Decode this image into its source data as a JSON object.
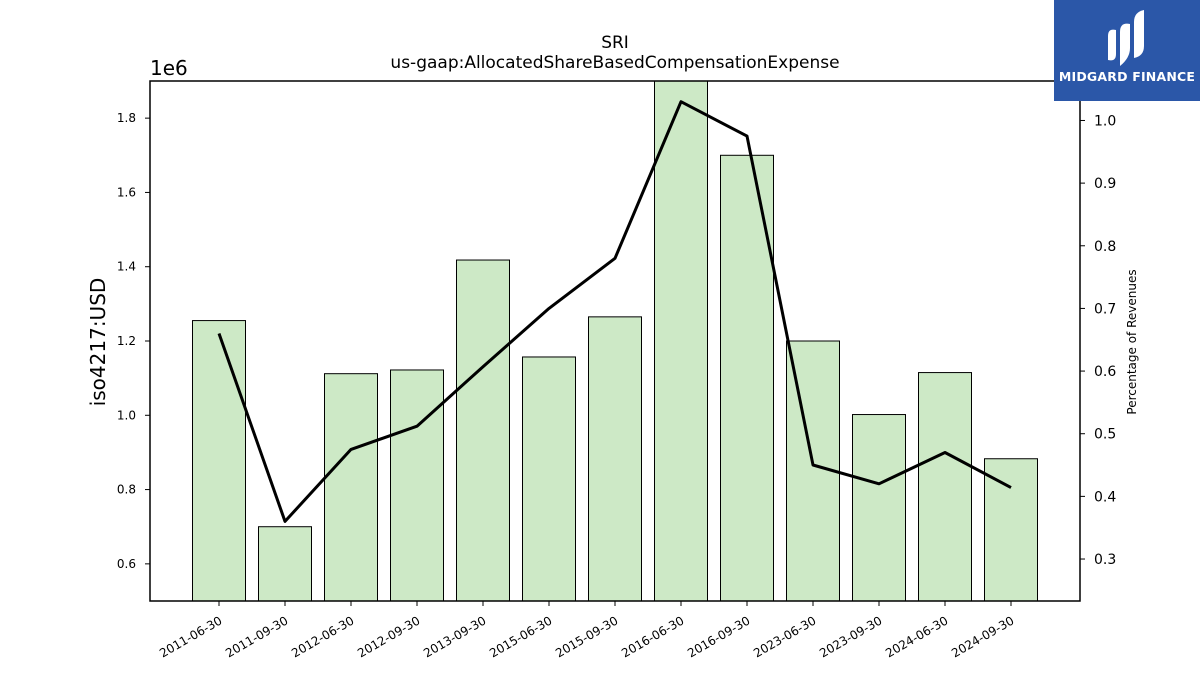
{
  "chart_data": {
    "type": "bar",
    "title": "SRI",
    "subtitle": "us-gaap:AllocatedShareBasedCompensationExpense",
    "ylabel": "iso4217:USD",
    "y_scale_label": "1e6",
    "y2label": "Percentage of Revenues",
    "categories": [
      "2011-06-30",
      "2011-09-30",
      "2012-06-30",
      "2012-09-30",
      "2013-09-30",
      "2015-06-30",
      "2015-09-30",
      "2016-06-30",
      "2016-09-30",
      "2023-06-30",
      "2023-09-30",
      "2024-06-30",
      "2024-09-30"
    ],
    "series": [
      {
        "type": "bar",
        "axis": "left",
        "values": [
          1255000,
          700000,
          1112000,
          1122000,
          1418000,
          1157000,
          1265000,
          1900000,
          1700000,
          1200000,
          1002000,
          1115000,
          883000
        ]
      },
      {
        "type": "line",
        "axis": "right",
        "values": [
          0.66,
          0.36,
          0.475,
          0.512,
          0.607,
          0.7,
          0.78,
          1.03,
          0.975,
          0.45,
          0.42,
          0.47,
          0.414
        ]
      }
    ],
    "ylim": [
      500000,
      1900000
    ],
    "y_ticks": [
      0.6,
      0.8,
      1.0,
      1.2,
      1.4,
      1.6,
      1.8
    ],
    "y2lim": [
      0.233,
      1.063
    ],
    "y2_ticks": [
      0.3,
      0.4,
      0.5,
      0.6,
      0.7,
      0.8,
      0.9,
      1.0
    ],
    "colors": {
      "bar_fill": "#cde9c6",
      "bar_edge": "#000000",
      "line": "#000000"
    }
  },
  "logo": {
    "text": "MIDGARD FINANCE",
    "background": "#2b57a8"
  }
}
